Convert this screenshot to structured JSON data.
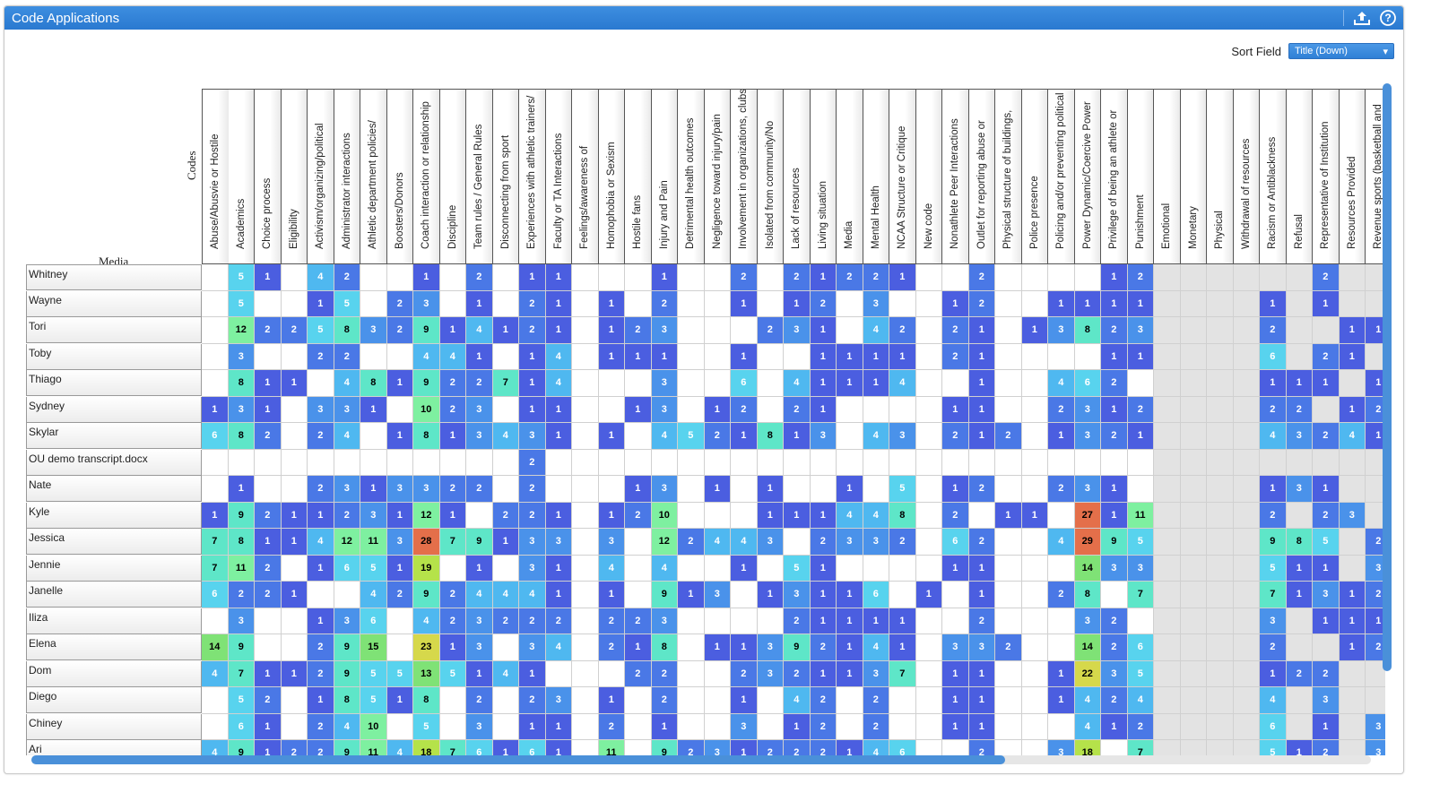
{
  "window": {
    "title": "Code Applications"
  },
  "sort": {
    "label": "Sort Field",
    "value": "Title (Down)"
  },
  "corner": {
    "codes": "Codes",
    "media": "Media"
  },
  "columns": [
    "Abuse/Abusvie or Hostile",
    "Academics",
    "Choice process",
    "Eligibility",
    "Activism/organizing/political",
    "Administrator interactions",
    "Athletic department policies/",
    "Boosters/Donors",
    "Coach interaction or relationship",
    "Discipline",
    "Team rules / General Rules",
    "Disconnecting from sport",
    "Experiences with athletic trainers/",
    "Faculty or TA Interactions",
    "Feelings/awareness of",
    "Homophobia or Sexism",
    "Hostile fans",
    "Injury and Pain",
    "Detrimental health outcomes",
    "Negligence toward injury/pain",
    "Involvement in organizations, clubs,",
    "Isolated from community/No",
    "Lack of resources",
    "Living situation",
    "Media",
    "Mental Health",
    "NCAA Structure or Critique",
    "New code",
    "Nonathlete Peer Interactions",
    "Outlet for reporting abuse or",
    "Physical structure of buildings,",
    "Police presence",
    "Policing and/or preventing political",
    "Power Dynamic/Coercive Power",
    "Privilege of being an athlete or",
    "Punishment",
    "Emotional",
    "Monetary",
    "Physical",
    "Withdrawal of resources",
    "Racism or Antiblackness",
    "Refusal",
    "Representative of Institution",
    "Resources Provided",
    "Revenue sports (basketball and"
  ],
  "greyFromIndex": 36,
  "rows": [
    {
      "name": "Whitney",
      "values": [
        "",
        "5",
        "1",
        "",
        "4",
        "2",
        "",
        "",
        "1",
        "",
        "2",
        "",
        "1",
        "1",
        "",
        "",
        "",
        "1",
        "",
        "",
        "2",
        "",
        "2",
        "1",
        "2",
        "2",
        "1",
        "",
        "",
        "2",
        "",
        "",
        "",
        "",
        "1",
        "2",
        "",
        "",
        "",
        "",
        "",
        "",
        "2",
        "",
        ""
      ]
    },
    {
      "name": "Wayne",
      "values": [
        "",
        "5",
        "",
        "",
        "1",
        "5",
        "",
        "2",
        "3",
        "",
        "1",
        "",
        "2",
        "1",
        "",
        "1",
        "",
        "2",
        "",
        "",
        "1",
        "",
        "1",
        "2",
        "",
        "3",
        "",
        "",
        "1",
        "2",
        "",
        "",
        "1",
        "1",
        "1",
        "1",
        "",
        "",
        "",
        "",
        "1",
        "",
        "1",
        "",
        ""
      ]
    },
    {
      "name": "Tori",
      "values": [
        "",
        "12",
        "2",
        "2",
        "5",
        "8",
        "3",
        "2",
        "9",
        "1",
        "4",
        "1",
        "2",
        "1",
        "",
        "1",
        "2",
        "3",
        "",
        "",
        "",
        "2",
        "3",
        "1",
        "",
        "4",
        "2",
        "",
        "2",
        "1",
        "",
        "1",
        "3",
        "8",
        "2",
        "3",
        "",
        "",
        "",
        "",
        "2",
        "",
        "",
        "1",
        "1"
      ]
    },
    {
      "name": "Toby",
      "values": [
        "",
        "3",
        "",
        "",
        "2",
        "2",
        "",
        "",
        "4",
        "4",
        "1",
        "",
        "1",
        "4",
        "",
        "1",
        "1",
        "1",
        "",
        "",
        "1",
        "",
        "",
        "1",
        "1",
        "1",
        "1",
        "",
        "2",
        "1",
        "",
        "",
        "",
        "",
        "1",
        "1",
        "",
        "",
        "",
        "",
        "6",
        "",
        "2",
        "1",
        ""
      ]
    },
    {
      "name": "Thiago",
      "values": [
        "",
        "8",
        "1",
        "1",
        "",
        "4",
        "8",
        "1",
        "9",
        "2",
        "2",
        "7",
        "1",
        "4",
        "",
        "",
        "",
        "3",
        "",
        "",
        "6",
        "",
        "4",
        "1",
        "1",
        "1",
        "4",
        "",
        "",
        "1",
        "",
        "",
        "4",
        "6",
        "2",
        "",
        "",
        "",
        "",
        "",
        "1",
        "1",
        "1",
        "",
        "1"
      ]
    },
    {
      "name": "Sydney",
      "values": [
        "1",
        "3",
        "1",
        "",
        "3",
        "3",
        "1",
        "",
        "10",
        "2",
        "3",
        "",
        "1",
        "1",
        "",
        "",
        "1",
        "3",
        "",
        "1",
        "2",
        "",
        "2",
        "1",
        "",
        "",
        "",
        "",
        "1",
        "1",
        "",
        "",
        "2",
        "3",
        "1",
        "2",
        "",
        "",
        "",
        "",
        "2",
        "2",
        "",
        "1",
        "2"
      ]
    },
    {
      "name": "Skylar",
      "values": [
        "6",
        "8",
        "2",
        "",
        "2",
        "4",
        "",
        "1",
        "8",
        "1",
        "3",
        "4",
        "3",
        "1",
        "",
        "1",
        "",
        "4",
        "5",
        "2",
        "1",
        "8",
        "1",
        "3",
        "",
        "4",
        "3",
        "",
        "2",
        "1",
        "2",
        "",
        "1",
        "3",
        "2",
        "1",
        "",
        "",
        "",
        "",
        "4",
        "3",
        "2",
        "4",
        "1"
      ]
    },
    {
      "name": "OU demo transcript.docx",
      "values": [
        "",
        "",
        "",
        "",
        "",
        "",
        "",
        "",
        "",
        "",
        "",
        "",
        "2",
        "",
        "",
        "",
        "",
        "",
        "",
        "",
        "",
        "",
        "",
        "",
        "",
        "",
        "",
        "",
        "",
        "",
        "",
        "",
        "",
        "",
        "",
        "",
        "",
        "",
        "",
        "",
        "",
        "",
        "",
        "",
        ""
      ]
    },
    {
      "name": "Nate",
      "values": [
        "",
        "1",
        "",
        "",
        "2",
        "3",
        "1",
        "3",
        "3",
        "2",
        "2",
        "",
        "2",
        "",
        "",
        "",
        "1",
        "3",
        "",
        "1",
        "",
        "1",
        "",
        "",
        "1",
        "",
        "5",
        "",
        "1",
        "2",
        "",
        "",
        "2",
        "3",
        "1",
        "",
        "",
        "",
        "",
        "",
        "1",
        "3",
        "1",
        "",
        ""
      ]
    },
    {
      "name": "Kyle",
      "values": [
        "1",
        "9",
        "2",
        "1",
        "1",
        "2",
        "3",
        "1",
        "12",
        "1",
        "",
        "2",
        "2",
        "1",
        "",
        "1",
        "2",
        "10",
        "",
        "",
        "",
        "1",
        "1",
        "1",
        "4",
        "4",
        "8",
        "",
        "2",
        "",
        "1",
        "1",
        "",
        "27",
        "1",
        "11",
        "",
        "",
        "",
        "",
        "2",
        "",
        "2",
        "3",
        ""
      ]
    },
    {
      "name": "Jessica",
      "values": [
        "7",
        "8",
        "1",
        "1",
        "4",
        "12",
        "11",
        "3",
        "28",
        "7",
        "9",
        "1",
        "3",
        "3",
        "",
        "3",
        "",
        "12",
        "2",
        "4",
        "4",
        "3",
        "",
        "2",
        "3",
        "3",
        "2",
        "",
        "6",
        "2",
        "",
        "",
        "4",
        "29",
        "9",
        "5",
        "",
        "",
        "",
        "",
        "9",
        "8",
        "5",
        "",
        "2"
      ]
    },
    {
      "name": "Jennie",
      "values": [
        "7",
        "11",
        "2",
        "",
        "1",
        "6",
        "5",
        "1",
        "19",
        "",
        "1",
        "",
        "3",
        "1",
        "",
        "4",
        "",
        "4",
        "",
        "",
        "1",
        "",
        "5",
        "1",
        "",
        "",
        "",
        "",
        "1",
        "1",
        "",
        "",
        "",
        "14",
        "3",
        "3",
        "",
        "",
        "",
        "",
        "5",
        "1",
        "1",
        "",
        "3"
      ]
    },
    {
      "name": "Janelle",
      "values": [
        "6",
        "2",
        "2",
        "1",
        "",
        "",
        "4",
        "2",
        "9",
        "2",
        "4",
        "4",
        "4",
        "1",
        "",
        "1",
        "",
        "9",
        "1",
        "3",
        "",
        "1",
        "3",
        "1",
        "1",
        "6",
        "",
        "1",
        "",
        "1",
        "",
        "",
        "2",
        "8",
        "",
        "7",
        "",
        "",
        "",
        "",
        "7",
        "1",
        "3",
        "1",
        "2"
      ]
    },
    {
      "name": "Iliza",
      "values": [
        "",
        "3",
        "",
        "",
        "1",
        "3",
        "6",
        "",
        "4",
        "2",
        "3",
        "2",
        "2",
        "2",
        "",
        "2",
        "2",
        "3",
        "",
        "",
        "",
        "",
        "2",
        "1",
        "1",
        "1",
        "1",
        "",
        "",
        "2",
        "",
        "",
        "",
        "3",
        "2",
        "",
        "",
        "",
        "",
        "",
        "3",
        "",
        "1",
        "1",
        "1"
      ]
    },
    {
      "name": "Elena",
      "values": [
        "14",
        "9",
        "",
        "",
        "2",
        "9",
        "15",
        "",
        "23",
        "1",
        "3",
        "",
        "3",
        "4",
        "",
        "2",
        "1",
        "8",
        "",
        "1",
        "1",
        "3",
        "9",
        "2",
        "1",
        "4",
        "1",
        "",
        "3",
        "3",
        "2",
        "",
        "",
        "14",
        "2",
        "6",
        "",
        "",
        "",
        "",
        "2",
        "",
        "",
        "1",
        "2"
      ]
    },
    {
      "name": "Dom",
      "values": [
        "4",
        "7",
        "1",
        "1",
        "2",
        "9",
        "5",
        "5",
        "13",
        "5",
        "1",
        "4",
        "1",
        "",
        "",
        "",
        "2",
        "2",
        "",
        "",
        "2",
        "3",
        "2",
        "1",
        "1",
        "3",
        "7",
        "",
        "1",
        "1",
        "",
        "",
        "1",
        "22",
        "3",
        "5",
        "",
        "",
        "",
        "",
        "1",
        "2",
        "2",
        "",
        ""
      ]
    },
    {
      "name": "Diego",
      "values": [
        "",
        "5",
        "2",
        "",
        "1",
        "8",
        "5",
        "1",
        "8",
        "",
        "2",
        "",
        "2",
        "3",
        "",
        "1",
        "",
        "2",
        "",
        "",
        "1",
        "",
        "4",
        "2",
        "",
        "2",
        "",
        "",
        "1",
        "1",
        "",
        "",
        "1",
        "4",
        "2",
        "4",
        "",
        "",
        "",
        "",
        "4",
        "",
        "3",
        "",
        ""
      ]
    },
    {
      "name": "Chiney",
      "values": [
        "",
        "6",
        "1",
        "",
        "2",
        "4",
        "10",
        "",
        "5",
        "",
        "3",
        "",
        "1",
        "1",
        "",
        "2",
        "",
        "1",
        "",
        "",
        "3",
        "",
        "1",
        "2",
        "",
        "2",
        "",
        "",
        "1",
        "1",
        "",
        "",
        "",
        "4",
        "1",
        "2",
        "",
        "",
        "",
        "",
        "6",
        "",
        "1",
        "",
        "3"
      ]
    },
    {
      "name": "Ari",
      "values": [
        "4",
        "9",
        "1",
        "2",
        "2",
        "9",
        "11",
        "4",
        "18",
        "7",
        "6",
        "1",
        "6",
        "1",
        "",
        "11",
        "",
        "9",
        "2",
        "3",
        "1",
        "2",
        "2",
        "2",
        "1",
        "4",
        "6",
        "",
        "",
        "2",
        "",
        "",
        "3",
        "18",
        "",
        "7",
        "",
        "",
        "",
        "",
        "5",
        "1",
        "2",
        "",
        "3"
      ]
    }
  ],
  "icons": {
    "upload": "upload-icon",
    "help": "help-icon",
    "dropdown": "chevron-down-icon"
  }
}
